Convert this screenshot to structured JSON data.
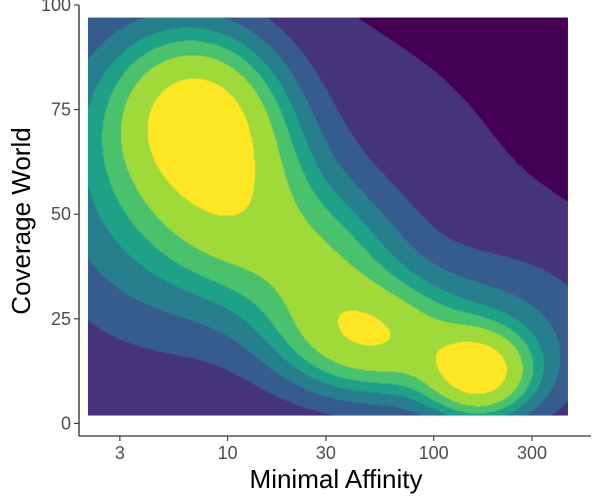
{
  "chart_data": {
    "type": "heatmap",
    "subtype": "filled 2D density contour",
    "title": "",
    "xlabel": "Minimal Affinity",
    "ylabel": "Coverage World",
    "x_scale": "log10",
    "x_range": [
      1.9,
      580
    ],
    "y_range": [
      -3,
      100
    ],
    "x_ticks": [
      {
        "value": 3,
        "label": "3"
      },
      {
        "value": 10,
        "label": "10"
      },
      {
        "value": 30,
        "label": "30"
      },
      {
        "value": 100,
        "label": "100"
      },
      {
        "value": 300,
        "label": "300"
      }
    ],
    "y_ticks": [
      {
        "value": 0,
        "label": "0"
      },
      {
        "value": 25,
        "label": "25"
      },
      {
        "value": 50,
        "label": "50"
      },
      {
        "value": 75,
        "label": "75"
      },
      {
        "value": 100,
        "label": "100"
      }
    ],
    "density_extent": {
      "x": [
        2.1,
        450
      ],
      "y": [
        2,
        97
      ]
    },
    "density_peaks": [
      {
        "x": 7.5,
        "y": 74,
        "relative_level": 0.84
      },
      {
        "x": 165,
        "y": 12,
        "relative_level": 0.95
      },
      {
        "x": 55,
        "y": 20,
        "relative_level": 0.8
      },
      {
        "x": 12,
        "y": 52,
        "relative_level": 0.64
      },
      {
        "x": 30,
        "y": 36,
        "relative_level": 0.59
      }
    ],
    "fill_levels": [
      "#440154",
      "#46337e",
      "#365c8d",
      "#277f8e",
      "#1fa187",
      "#4ac16d",
      "#9fda3a",
      "#fde725"
    ],
    "grid": false,
    "legend": "none"
  }
}
